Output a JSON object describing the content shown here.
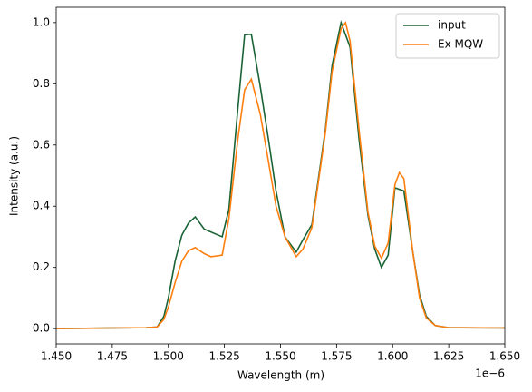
{
  "chart_data": {
    "type": "line",
    "xlabel": "Wavelength (m)",
    "ylabel": "Intensity (a.u.)",
    "x_offset_label": "1e−6",
    "xlim": [
      1.45,
      1.65
    ],
    "xticks": [
      {
        "value": 1.45,
        "label": "1.450"
      },
      {
        "value": 1.475,
        "label": "1.475"
      },
      {
        "value": 1.5,
        "label": "1.500"
      },
      {
        "value": 1.525,
        "label": "1.525"
      },
      {
        "value": 1.55,
        "label": "1.550"
      },
      {
        "value": 1.575,
        "label": "1.575"
      },
      {
        "value": 1.6,
        "label": "1.600"
      },
      {
        "value": 1.625,
        "label": "1.625"
      },
      {
        "value": 1.65,
        "label": "1.650"
      }
    ],
    "ylim": [
      -0.05,
      1.05
    ],
    "yticks": [
      {
        "value": 0,
        "label": "0.0"
      },
      0.2,
      0.4,
      0.6,
      0.8,
      {
        "value": 1,
        "label": "1.0"
      }
    ],
    "legend": "upper right",
    "series": [
      {
        "name": "input",
        "color": "#1a6336",
        "x": [
          1.45,
          1.49,
          1.495,
          1.498,
          1.5,
          1.503,
          1.506,
          1.509,
          1.512,
          1.516,
          1.524,
          1.527,
          1.531,
          1.534,
          1.537,
          1.541,
          1.545,
          1.548,
          1.552,
          1.557,
          1.56,
          1.564,
          1.57,
          1.573,
          1.577,
          1.581,
          1.585,
          1.589,
          1.592,
          1.595,
          1.598,
          1.601,
          1.605,
          1.609,
          1.612,
          1.615,
          1.619,
          1.625,
          1.65
        ],
        "values": [
          0,
          0.003,
          0.005,
          0.04,
          0.1,
          0.22,
          0.305,
          0.345,
          0.365,
          0.325,
          0.3,
          0.39,
          0.72,
          0.96,
          0.962,
          0.79,
          0.6,
          0.45,
          0.3,
          0.25,
          0.29,
          0.34,
          0.65,
          0.86,
          1.0,
          0.92,
          0.62,
          0.37,
          0.26,
          0.2,
          0.24,
          0.46,
          0.45,
          0.25,
          0.11,
          0.04,
          0.01,
          0.003,
          0.002
        ]
      },
      {
        "name": "Ex MQW",
        "color": "#ff7f0e",
        "x": [
          1.45,
          1.49,
          1.495,
          1.498,
          1.5,
          1.503,
          1.506,
          1.509,
          1.512,
          1.516,
          1.519,
          1.524,
          1.527,
          1.531,
          1.534,
          1.537,
          1.541,
          1.545,
          1.548,
          1.552,
          1.557,
          1.56,
          1.564,
          1.57,
          1.573,
          1.577,
          1.579,
          1.581,
          1.585,
          1.589,
          1.592,
          1.595,
          1.598,
          1.601,
          1.603,
          1.605,
          1.609,
          1.612,
          1.615,
          1.619,
          1.625,
          1.65
        ],
        "values": [
          0,
          0.003,
          0.005,
          0.03,
          0.07,
          0.15,
          0.22,
          0.255,
          0.265,
          0.245,
          0.235,
          0.24,
          0.36,
          0.62,
          0.78,
          0.815,
          0.7,
          0.53,
          0.4,
          0.3,
          0.235,
          0.26,
          0.33,
          0.64,
          0.84,
          0.98,
          1.0,
          0.94,
          0.65,
          0.38,
          0.27,
          0.23,
          0.28,
          0.47,
          0.51,
          0.49,
          0.25,
          0.1,
          0.035,
          0.01,
          0.003,
          0.002
        ]
      }
    ]
  }
}
